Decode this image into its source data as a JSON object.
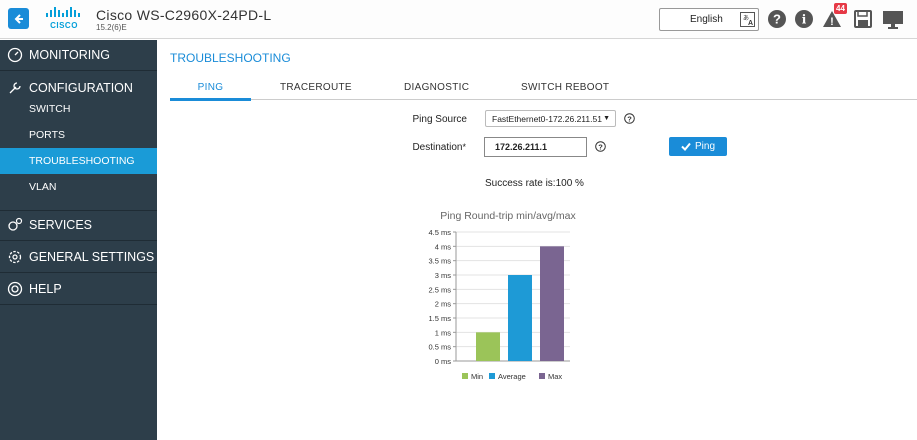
{
  "header": {
    "logo_text": "CISCO",
    "device_name": "Cisco WS-C2960X-24PD-L",
    "device_version": "15.2(6)E",
    "language": "English",
    "alert_count": "44"
  },
  "sidebar": {
    "monitoring": "MONITORING",
    "configuration": "CONFIGURATION",
    "sub_items": [
      "SWITCH",
      "PORTS",
      "TROUBLESHOOTING",
      "VLAN"
    ],
    "services": "SERVICES",
    "general_settings": "GENERAL SETTINGS",
    "help": "HELP"
  },
  "main": {
    "title": "TROUBLESHOOTING",
    "tabs": [
      "PING",
      "TRACEROUTE",
      "DIAGNOSTIC",
      "SWITCH REBOOT"
    ],
    "ping_source_label": "Ping Source",
    "ping_source_value": "FastEthernet0-172.26.211.51",
    "destination_label": "Destination",
    "destination_required": "*",
    "destination_value": "172.26.211.1",
    "ping_button": "Ping",
    "success_text": "Success rate is:100 %"
  },
  "colors": {
    "accent": "#1a8cd8",
    "sidebar_bg": "#2d3e4a",
    "active_nav": "#1a9bd7"
  },
  "chart_data": {
    "type": "bar",
    "title": "Ping Round-trip min/avg/max",
    "categories": [
      "Min",
      "Average",
      "Max"
    ],
    "values": [
      1,
      3,
      4
    ],
    "colors": [
      "#9bc459",
      "#1e9ad6",
      "#7a6591"
    ],
    "ylim": [
      0,
      4.5
    ],
    "yticks": [
      "0 ms",
      "0.5 ms",
      "1 ms",
      "1.5 ms",
      "2 ms",
      "2.5 ms",
      "3 ms",
      "3.5 ms",
      "4 ms",
      "4.5 ms"
    ],
    "legend_position": "bottom"
  }
}
